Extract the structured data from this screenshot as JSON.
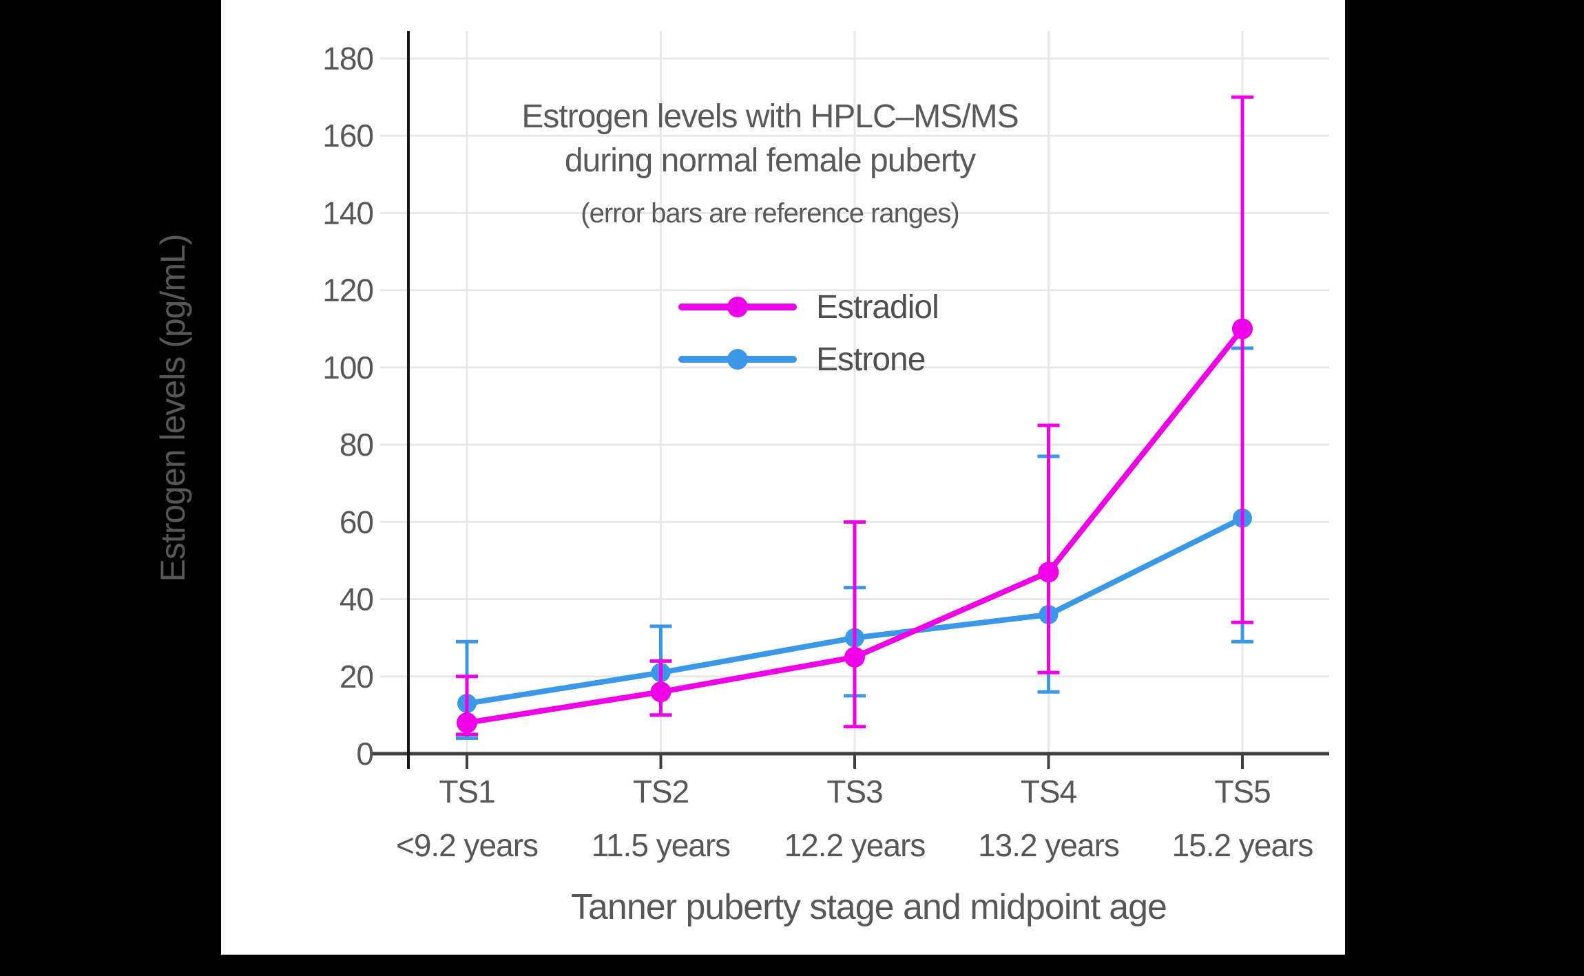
{
  "chart_data": {
    "type": "line",
    "title": "Estrogen levels with HPLC–MS/MS during normal female puberty",
    "title_line1": "Estrogen levels with HPLC–MS/MS",
    "title_line2": "during normal female puberty",
    "subtitle": "(error bars are reference ranges)",
    "xlabel": "Tanner puberty stage and midpoint age",
    "ylabel": "Estrogen levels (pg/mL)",
    "categories": [
      "TS1",
      "TS2",
      "TS3",
      "TS4",
      "TS5"
    ],
    "category_sublabels": [
      "<9.2 years",
      "11.5 years",
      "12.2 years",
      "13.2 years",
      "15.2 years"
    ],
    "yticks": [
      0,
      20,
      40,
      60,
      80,
      100,
      120,
      140,
      160,
      180
    ],
    "ylim": [
      0,
      187
    ],
    "grid": true,
    "legend_position": "inside-upper-center",
    "error_bar_meaning": "reference ranges",
    "series": [
      {
        "name": "Estradiol",
        "color": "#f000e8",
        "values": [
          8,
          16,
          25,
          47,
          110
        ],
        "range_low": [
          5,
          10,
          7,
          21,
          34
        ],
        "range_high": [
          20,
          24,
          60,
          85,
          170
        ]
      },
      {
        "name": "Estrone",
        "color": "#3b98e8",
        "values": [
          13,
          21,
          30,
          36,
          61
        ],
        "range_low": [
          4,
          10,
          15,
          16,
          29
        ],
        "range_high": [
          29,
          33,
          43,
          77,
          105
        ]
      }
    ]
  },
  "style_colors": {
    "grid": "#e8e8e8",
    "x_axis": "#3f3f3f",
    "y_axis": "#161616",
    "text": "#57575a",
    "panel": "#ffffff",
    "background": "#000000"
  }
}
